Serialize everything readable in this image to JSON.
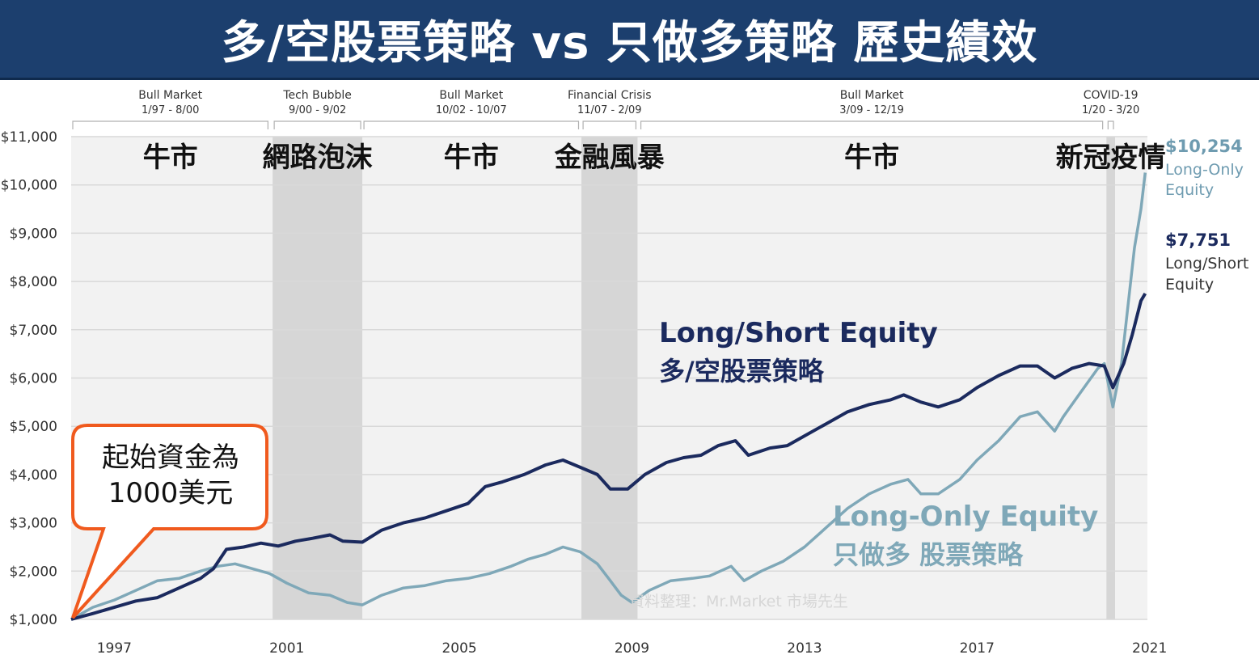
{
  "header": {
    "title": "多/空股票策略 vs 只做多策略 歷史績效"
  },
  "colors": {
    "banner": "#1c3f6e",
    "long_short": "#1b2a5e",
    "long_only": "#7fa8b8",
    "shade": "#d6d6d6",
    "plot_bg": "#f2f2f2",
    "callout_border": "#f05a1e"
  },
  "periods": [
    {
      "name": "Bull Market",
      "range": "1/97 - 8/00",
      "zh": "牛市",
      "shaded": false,
      "start": 1996.0,
      "end": 2000.6
    },
    {
      "name": "Tech Bubble",
      "range": "9/00 - 9/02",
      "zh": "網路泡沫",
      "shaded": true,
      "start": 2000.67,
      "end": 2002.75
    },
    {
      "name": "Bull Market",
      "range": "10/02 - 10/07",
      "zh": "牛市",
      "shaded": false,
      "start": 2002.75,
      "end": 2007.8
    },
    {
      "name": "Financial Crisis",
      "range": "11/07 - 2/09",
      "zh": "金融風暴",
      "shaded": true,
      "start": 2007.83,
      "end": 2009.13
    },
    {
      "name": "Bull Market",
      "range": "3/09 - 12/19",
      "zh": "牛市",
      "shaded": false,
      "start": 2009.17,
      "end": 2019.95
    },
    {
      "name": "COVID-19",
      "range": "1/20 - 3/20",
      "zh": "新冠疫情",
      "shaded": true,
      "start": 2020.0,
      "end": 2020.2
    }
  ],
  "callout": {
    "line1": "起始資金為",
    "line2": "1000美元"
  },
  "watermark": "資料整理：Mr.Market 市場先生",
  "series_labels": {
    "long_short_en": "Long/Short Equity",
    "long_short_zh": "多/空股票策略",
    "long_only_en": "Long-Only Equity",
    "long_only_zh": "只做多 股票策略"
  },
  "end_labels": {
    "long_only_value": "$10,254",
    "long_only_name_1": "Long-Only",
    "long_only_name_2": "Equity",
    "long_short_value": "$7,751",
    "long_short_name_1": "Long/Short",
    "long_short_name_2": "Equity"
  },
  "chart_data": {
    "type": "line",
    "title": "",
    "xlabel": "",
    "ylabel": "",
    "xlim": [
      1996.0,
      2020.95
    ],
    "ylim": [
      1000,
      11000
    ],
    "grid": true,
    "x_ticks": [
      1997,
      2001,
      2005,
      2009,
      2013,
      2017,
      2021
    ],
    "x_tick_labels": [
      "1997",
      "2001",
      "2005",
      "2009",
      "2013",
      "2017",
      "2021"
    ],
    "y_ticks": [
      1000,
      2000,
      3000,
      4000,
      5000,
      6000,
      7000,
      8000,
      9000,
      10000,
      11000
    ],
    "y_tick_labels": [
      "$1,000",
      "$2,000",
      "$3,000",
      "$4,000",
      "$5,000",
      "$6,000",
      "$7,000",
      "$8,000",
      "$9,000",
      "$10,000",
      "$11,000"
    ],
    "series": [
      {
        "name": "Long/Short Equity",
        "color": "#1b2a5e",
        "points": [
          [
            1996.0,
            1000
          ],
          [
            1996.5,
            1120
          ],
          [
            1997.0,
            1250
          ],
          [
            1997.5,
            1380
          ],
          [
            1998.0,
            1450
          ],
          [
            1998.5,
            1650
          ],
          [
            1999.0,
            1850
          ],
          [
            1999.3,
            2050
          ],
          [
            1999.6,
            2450
          ],
          [
            2000.0,
            2500
          ],
          [
            2000.4,
            2580
          ],
          [
            2000.8,
            2520
          ],
          [
            2001.2,
            2620
          ],
          [
            2001.6,
            2680
          ],
          [
            2002.0,
            2750
          ],
          [
            2002.3,
            2620
          ],
          [
            2002.75,
            2600
          ],
          [
            2003.2,
            2850
          ],
          [
            2003.7,
            3000
          ],
          [
            2004.2,
            3100
          ],
          [
            2004.7,
            3250
          ],
          [
            2005.2,
            3400
          ],
          [
            2005.6,
            3750
          ],
          [
            2006.0,
            3850
          ],
          [
            2006.5,
            4000
          ],
          [
            2007.0,
            4200
          ],
          [
            2007.4,
            4300
          ],
          [
            2007.8,
            4150
          ],
          [
            2008.2,
            4000
          ],
          [
            2008.5,
            3700
          ],
          [
            2008.9,
            3700
          ],
          [
            2009.3,
            4000
          ],
          [
            2009.8,
            4250
          ],
          [
            2010.2,
            4350
          ],
          [
            2010.6,
            4400
          ],
          [
            2011.0,
            4600
          ],
          [
            2011.4,
            4700
          ],
          [
            2011.7,
            4400
          ],
          [
            2012.2,
            4550
          ],
          [
            2012.6,
            4600
          ],
          [
            2013.0,
            4800
          ],
          [
            2013.5,
            5050
          ],
          [
            2014.0,
            5300
          ],
          [
            2014.5,
            5450
          ],
          [
            2015.0,
            5550
          ],
          [
            2015.3,
            5650
          ],
          [
            2015.7,
            5500
          ],
          [
            2016.1,
            5400
          ],
          [
            2016.6,
            5550
          ],
          [
            2017.0,
            5800
          ],
          [
            2017.5,
            6050
          ],
          [
            2018.0,
            6250
          ],
          [
            2018.4,
            6250
          ],
          [
            2018.8,
            6000
          ],
          [
            2019.2,
            6200
          ],
          [
            2019.6,
            6300
          ],
          [
            2019.95,
            6250
          ],
          [
            2020.15,
            5800
          ],
          [
            2020.4,
            6300
          ],
          [
            2020.6,
            6900
          ],
          [
            2020.8,
            7600
          ],
          [
            2020.9,
            7750
          ]
        ]
      },
      {
        "name": "Long-Only Equity",
        "color": "#7fa8b8",
        "points": [
          [
            1996.0,
            1000
          ],
          [
            1996.5,
            1250
          ],
          [
            1997.0,
            1400
          ],
          [
            1997.5,
            1600
          ],
          [
            1998.0,
            1800
          ],
          [
            1998.5,
            1850
          ],
          [
            1999.0,
            2000
          ],
          [
            1999.4,
            2100
          ],
          [
            1999.8,
            2150
          ],
          [
            2000.2,
            2050
          ],
          [
            2000.6,
            1950
          ],
          [
            2001.0,
            1750
          ],
          [
            2001.5,
            1550
          ],
          [
            2002.0,
            1500
          ],
          [
            2002.4,
            1350
          ],
          [
            2002.75,
            1300
          ],
          [
            2003.2,
            1500
          ],
          [
            2003.7,
            1650
          ],
          [
            2004.2,
            1700
          ],
          [
            2004.7,
            1800
          ],
          [
            2005.2,
            1850
          ],
          [
            2005.7,
            1950
          ],
          [
            2006.2,
            2100
          ],
          [
            2006.6,
            2250
          ],
          [
            2007.0,
            2350
          ],
          [
            2007.4,
            2500
          ],
          [
            2007.8,
            2400
          ],
          [
            2008.2,
            2150
          ],
          [
            2008.5,
            1800
          ],
          [
            2008.75,
            1500
          ],
          [
            2009.0,
            1350
          ],
          [
            2009.4,
            1600
          ],
          [
            2009.9,
            1800
          ],
          [
            2010.4,
            1850
          ],
          [
            2010.8,
            1900
          ],
          [
            2011.3,
            2100
          ],
          [
            2011.6,
            1800
          ],
          [
            2012.0,
            2000
          ],
          [
            2012.5,
            2200
          ],
          [
            2013.0,
            2500
          ],
          [
            2013.5,
            2900
          ],
          [
            2014.0,
            3300
          ],
          [
            2014.5,
            3600
          ],
          [
            2015.0,
            3800
          ],
          [
            2015.4,
            3900
          ],
          [
            2015.7,
            3600
          ],
          [
            2016.1,
            3600
          ],
          [
            2016.6,
            3900
          ],
          [
            2017.0,
            4300
          ],
          [
            2017.5,
            4700
          ],
          [
            2018.0,
            5200
          ],
          [
            2018.4,
            5300
          ],
          [
            2018.8,
            4900
          ],
          [
            2019.0,
            5200
          ],
          [
            2019.4,
            5700
          ],
          [
            2019.8,
            6200
          ],
          [
            2019.95,
            6300
          ],
          [
            2020.15,
            5400
          ],
          [
            2020.35,
            6300
          ],
          [
            2020.5,
            7500
          ],
          [
            2020.65,
            8700
          ],
          [
            2020.8,
            9500
          ],
          [
            2020.9,
            10254
          ]
        ]
      }
    ]
  }
}
